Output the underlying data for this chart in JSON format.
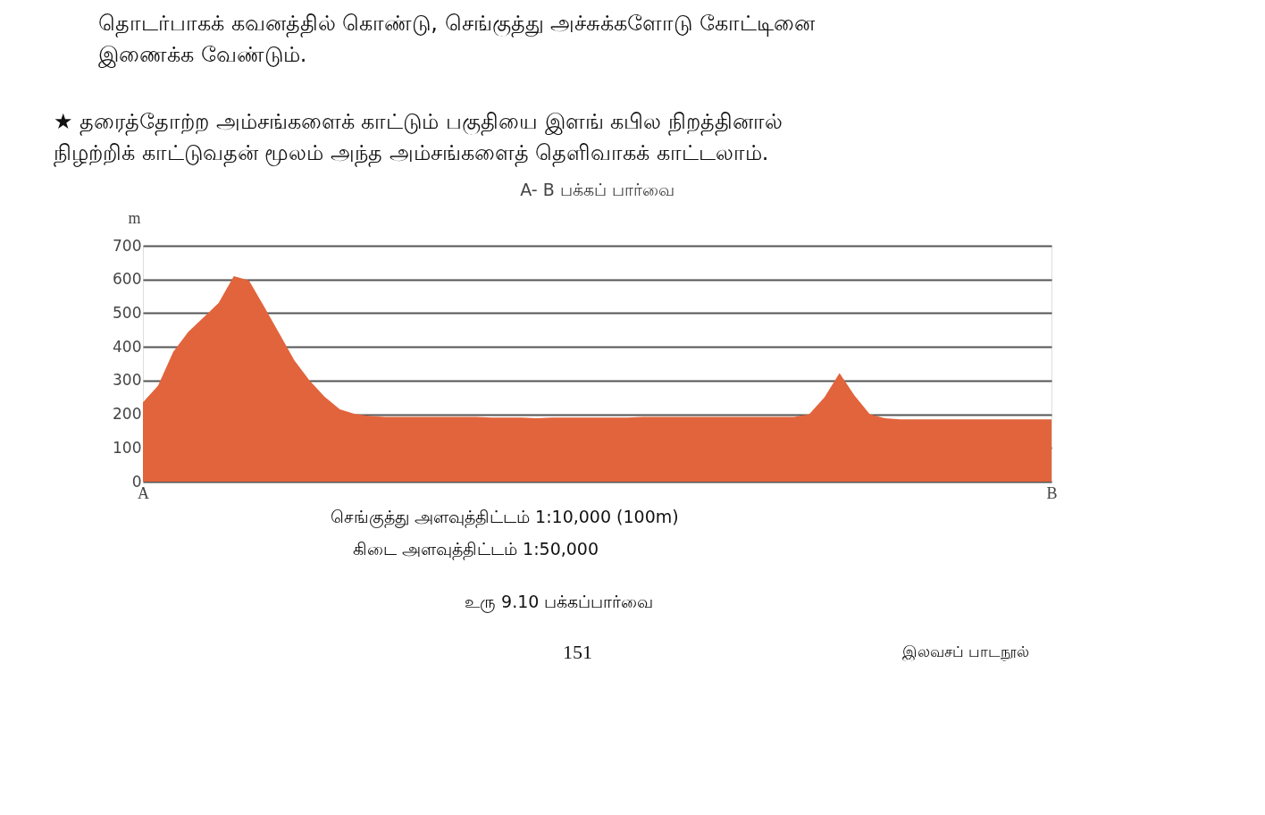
{
  "chart_data": {
    "type": "area",
    "title": "A- B பக்கப் பார்வை",
    "ylabel": "m",
    "categories": [
      "A",
      null,
      null,
      null,
      null,
      null,
      null,
      null,
      null,
      null,
      null,
      null,
      null,
      null,
      null,
      null,
      null,
      null,
      null,
      null,
      null,
      null,
      null,
      null,
      null,
      null,
      null,
      null,
      null,
      null,
      null,
      null,
      null,
      null,
      null,
      null,
      null,
      null,
      null,
      null,
      null,
      null,
      null,
      null,
      null,
      null,
      null,
      null,
      null,
      null,
      null,
      null,
      null,
      null,
      null,
      null,
      null,
      null,
      null,
      null,
      "B"
    ],
    "values": [
      235,
      285,
      385,
      445,
      487,
      530,
      610,
      597,
      520,
      440,
      360,
      300,
      252,
      215,
      201,
      195,
      192,
      192,
      192,
      192,
      192,
      192,
      192,
      190,
      190,
      190,
      188,
      190,
      190,
      190,
      190,
      190,
      190,
      192,
      192,
      192,
      192,
      192,
      192,
      192,
      192,
      192,
      192,
      192,
      200,
      250,
      322,
      255,
      200,
      188,
      185,
      185,
      185,
      185,
      185,
      185,
      185,
      185,
      185,
      185,
      185
    ],
    "color": "#e2643c",
    "ylim": [
      0,
      700
    ],
    "yticks": [
      0,
      100,
      200,
      300,
      400,
      500,
      600,
      700
    ],
    "grid": "y",
    "annotations": [
      "தொடர்பாகக் கவனத்தில் கொண்டு, செங்குத்து அச்சுக்களோடு கோட்டினை\nஇணைக்க வேண்டும்.",
      "★ தரைத்தோற்ற அம்சங்களைக் காட்டும் பகுதியை இளங் கபில நிறத்தினால்\n    நிழற்றிக் காட்டுவதன் மூலம் அந்த அம்சங்களைத் தெளிவாகக் காட்டலாம்.",
      "செங்குத்து அளவுத்திட்டம்   1:10,000 (100m)",
      "கிடை அளவுத்திட்டம்   1:50,000",
      "உரு 9.10 பக்கப்பார்வை",
      "151",
      "இலவசப் பாடநூல்"
    ]
  }
}
